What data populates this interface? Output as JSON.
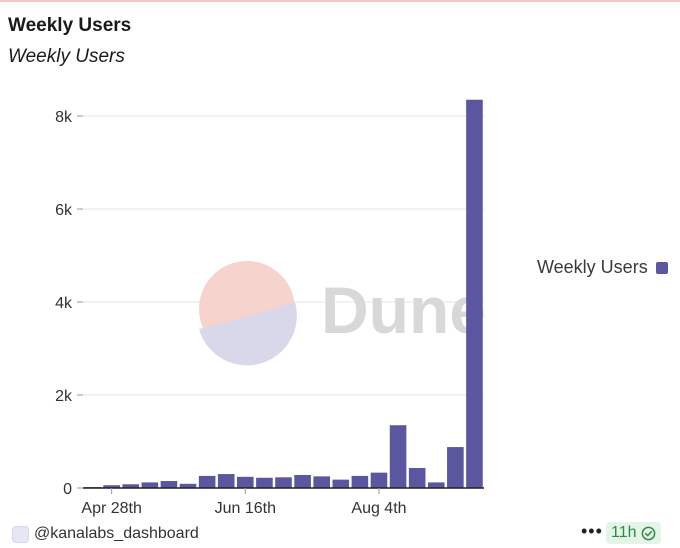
{
  "header": {
    "title": "Weekly Users",
    "subtitle": "Weekly Users"
  },
  "legend": {
    "label": "Weekly Users"
  },
  "watermark": {
    "text": "Dune"
  },
  "footer": {
    "username": "@kanalabs_dashboard",
    "more": "•••",
    "freshness": "11h"
  },
  "colors": {
    "bar": "#5b56a0",
    "grid": "#e6e6e6",
    "axis": "#222222",
    "freshness_bg": "#e4f5e8",
    "freshness_text": "#2f8a4a",
    "watermark_logo_top": "#f7d3cd",
    "watermark_logo_bottom": "#d9d8ea",
    "watermark_text": "#d8d8d8"
  },
  "chart_data": {
    "type": "bar",
    "title": "Weekly Users",
    "xlabel": "",
    "ylabel": "",
    "ylim": [
      0,
      8500
    ],
    "yticks": [
      0,
      2000,
      4000,
      6000,
      8000
    ],
    "ytick_labels": [
      "0",
      "2k",
      "4k",
      "6k",
      "8k"
    ],
    "grid": true,
    "legend_position": "right",
    "x_tick_labels": [
      {
        "index": 1,
        "label": "Apr 28th"
      },
      {
        "index": 8,
        "label": "Jun 16th"
      },
      {
        "index": 15,
        "label": "Aug 4th"
      }
    ],
    "series": [
      {
        "name": "Weekly Users",
        "values": [
          20,
          60,
          80,
          120,
          150,
          90,
          260,
          300,
          240,
          220,
          230,
          280,
          250,
          180,
          260,
          330,
          1350,
          430,
          120,
          880,
          8350
        ]
      }
    ]
  }
}
